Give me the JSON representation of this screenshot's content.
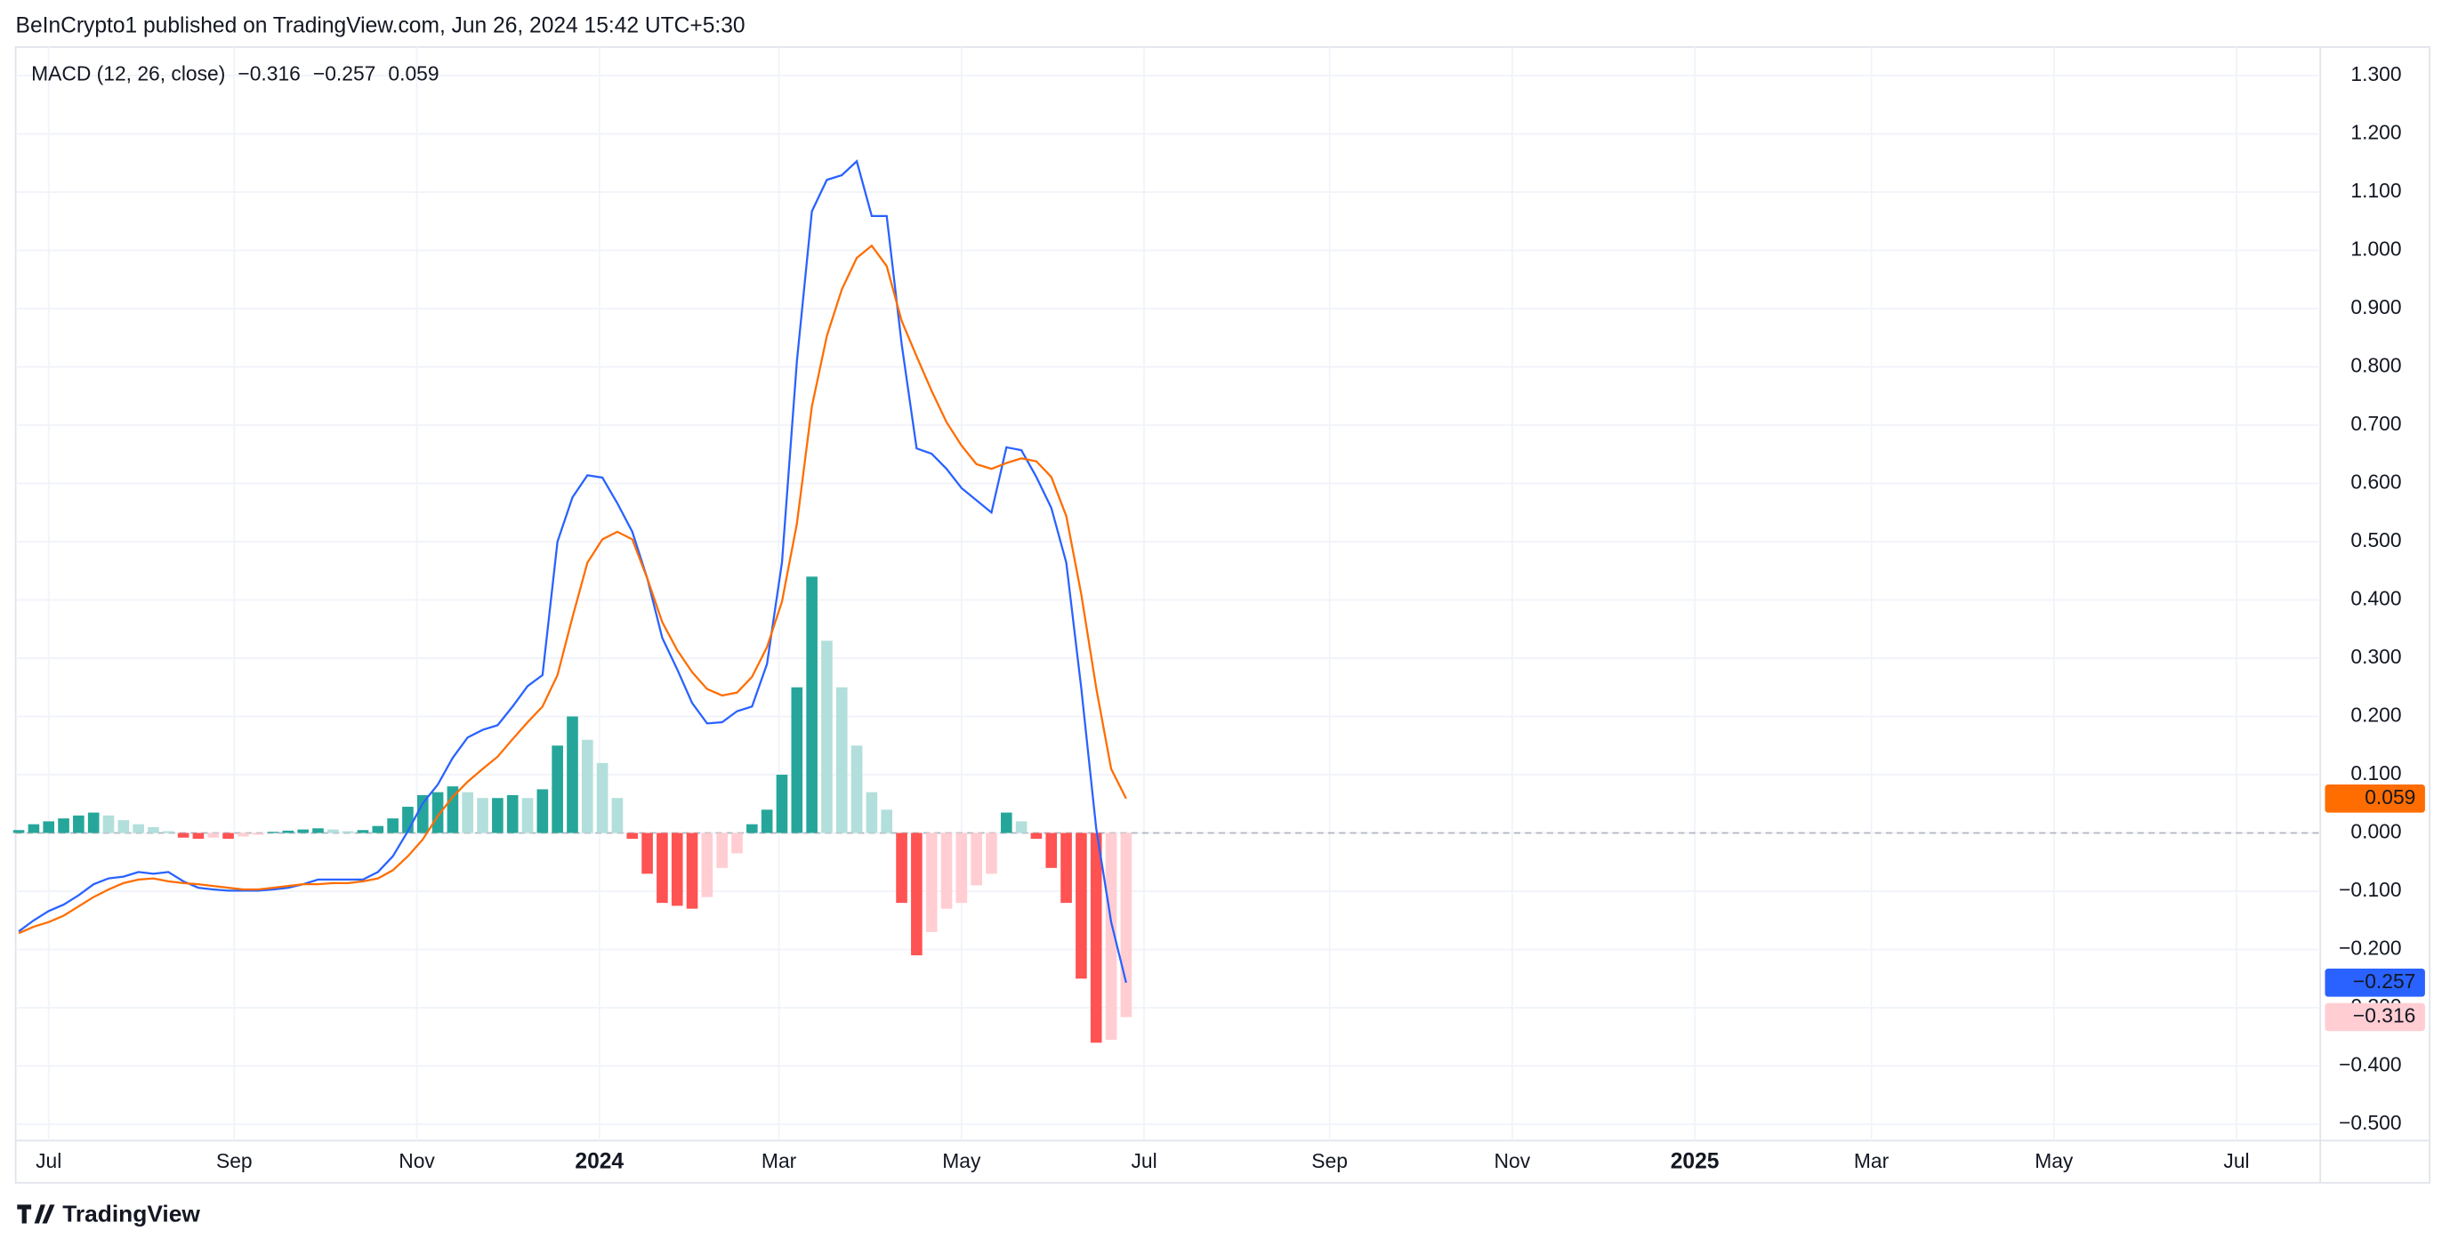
{
  "chart_data": {
    "type": "macd",
    "title": "BeInCrypto1 published on TradingView.com, Jun 26, 2024 15:42 UTC+5:30",
    "indicator": "MACD (12, 26, close)",
    "brand": "TradingView",
    "x": [
      -10,
      -5,
      0,
      5,
      10,
      15,
      20,
      25,
      30,
      35,
      40,
      45,
      50,
      55,
      60,
      65,
      70,
      75,
      80,
      85,
      90,
      95,
      100,
      105,
      110,
      115,
      120,
      125,
      130,
      135,
      140,
      145,
      150,
      155,
      160,
      165,
      170,
      175,
      180,
      185,
      190,
      195,
      200,
      205,
      210,
      215,
      220,
      225,
      230,
      235,
      240,
      245,
      250,
      255,
      260,
      265,
      270,
      275,
      280,
      285,
      290,
      295,
      300,
      305,
      310,
      315,
      320,
      325,
      330,
      335,
      340,
      345,
      350,
      355,
      360
    ],
    "xlim": [
      -10,
      759
    ],
    "xticks": [
      {
        "value": 0,
        "label": "Jul"
      },
      {
        "value": 62,
        "label": "Sep"
      },
      {
        "value": 123,
        "label": "Nov"
      },
      {
        "value": 184,
        "label": "2024"
      },
      {
        "value": 244,
        "label": "Mar"
      },
      {
        "value": 305,
        "label": "May"
      },
      {
        "value": 366,
        "label": "Jul"
      },
      {
        "value": 428,
        "label": "Sep"
      },
      {
        "value": 489,
        "label": "Nov"
      },
      {
        "value": 550,
        "label": "2025"
      },
      {
        "value": 609,
        "label": "Mar"
      },
      {
        "value": 670,
        "label": "May"
      },
      {
        "value": 731,
        "label": "Jul"
      }
    ],
    "ylim": [
      -0.528,
      1.349
    ],
    "yticks": [
      {
        "value": 1.3,
        "label": "1.300"
      },
      {
        "value": 1.2,
        "label": "1.200"
      },
      {
        "value": 1.1,
        "label": "1.100"
      },
      {
        "value": 1.0,
        "label": "1.000"
      },
      {
        "value": 0.9,
        "label": "0.900"
      },
      {
        "value": 0.8,
        "label": "0.800"
      },
      {
        "value": 0.7,
        "label": "0.700"
      },
      {
        "value": 0.6,
        "label": "0.600"
      },
      {
        "value": 0.5,
        "label": "0.500"
      },
      {
        "value": 0.4,
        "label": "0.400"
      },
      {
        "value": 0.3,
        "label": "0.300"
      },
      {
        "value": 0.2,
        "label": "0.200"
      },
      {
        "value": 0.1,
        "label": "0.100"
      },
      {
        "value": 0,
        "label": "0.000"
      },
      {
        "value": -0.1,
        "label": "−0.100"
      },
      {
        "value": -0.2,
        "label": "−0.200"
      },
      {
        "value": -0.3,
        "label": "−0.300"
      },
      {
        "value": -0.4,
        "label": "−0.400"
      },
      {
        "value": -0.5,
        "label": "−0.500"
      }
    ],
    "grid": true,
    "zero_line": true,
    "series": [
      {
        "type": "bar",
        "color": "#ffcdd2",
        "colors": {
          "grow_above": "#26a69a",
          "fall_above": "#b2dfdb",
          "grow_below": "#ffcdd2",
          "fall_below": "#ff5252"
        },
        "last_label": "−0.316",
        "values": [
          0.005,
          0.015,
          0.02,
          0.025,
          0.03,
          0.035,
          0.03,
          0.022,
          0.015,
          0.01,
          0.003,
          -0.008,
          -0.01,
          -0.008,
          -0.01,
          -0.006,
          -0.003,
          0.002,
          0.004,
          0.006,
          0.008,
          0.006,
          0.003,
          0.005,
          0.012,
          0.025,
          0.045,
          0.065,
          0.07,
          0.08,
          0.07,
          0.06,
          0.06,
          0.065,
          0.06,
          0.075,
          0.15,
          0.2,
          0.16,
          0.12,
          0.06,
          -0.01,
          -0.07,
          -0.12,
          -0.125,
          -0.13,
          -0.11,
          -0.06,
          -0.035,
          0.015,
          0.04,
          0.1,
          0.25,
          0.44,
          0.33,
          0.25,
          0.15,
          0.07,
          0.04,
          -0.12,
          -0.21,
          -0.17,
          -0.13,
          -0.12,
          -0.09,
          -0.07,
          0.035,
          0.02,
          -0.01,
          -0.06,
          -0.12,
          -0.25,
          -0.36,
          -0.355,
          -0.316
        ]
      },
      {
        "type": "line",
        "color": "#2962ff",
        "last_label": "−0.257",
        "values": [
          -0.169,
          -0.15,
          -0.134,
          -0.123,
          -0.107,
          -0.088,
          -0.078,
          -0.075,
          -0.067,
          -0.07,
          -0.067,
          -0.083,
          -0.094,
          -0.097,
          -0.099,
          -0.099,
          -0.099,
          -0.097,
          -0.094,
          -0.088,
          -0.08,
          -0.08,
          -0.08,
          -0.08,
          -0.067,
          -0.04,
          0.003,
          0.051,
          0.083,
          0.129,
          0.164,
          0.177,
          0.185,
          0.217,
          0.252,
          0.271,
          0.5,
          0.576,
          0.614,
          0.61,
          0.566,
          0.517,
          0.437,
          0.335,
          0.281,
          0.223,
          0.188,
          0.19,
          0.209,
          0.217,
          0.29,
          0.464,
          0.81,
          1.067,
          1.121,
          1.129,
          1.153,
          1.059,
          1.059,
          0.839,
          0.66,
          0.651,
          0.625,
          0.592,
          0.571,
          0.55,
          0.662,
          0.657,
          0.611,
          0.558,
          0.464,
          0.249,
          0.008,
          -0.153,
          -0.257
        ]
      },
      {
        "type": "line",
        "color": "#ff6d00",
        "last_label": "0.059",
        "values": [
          -0.172,
          -0.161,
          -0.153,
          -0.142,
          -0.126,
          -0.11,
          -0.097,
          -0.086,
          -0.08,
          -0.078,
          -0.083,
          -0.086,
          -0.088,
          -0.091,
          -0.094,
          -0.097,
          -0.097,
          -0.094,
          -0.091,
          -0.088,
          -0.088,
          -0.086,
          -0.086,
          -0.083,
          -0.078,
          -0.064,
          -0.04,
          -0.011,
          0.029,
          0.062,
          0.088,
          0.11,
          0.131,
          0.161,
          0.19,
          0.217,
          0.271,
          0.37,
          0.464,
          0.504,
          0.517,
          0.504,
          0.437,
          0.362,
          0.314,
          0.276,
          0.247,
          0.236,
          0.241,
          0.268,
          0.319,
          0.397,
          0.531,
          0.732,
          0.853,
          0.933,
          0.987,
          1.008,
          0.973,
          0.879,
          0.818,
          0.759,
          0.705,
          0.665,
          0.633,
          0.625,
          0.635,
          0.643,
          0.638,
          0.611,
          0.544,
          0.41,
          0.249,
          0.11,
          0.059
        ]
      }
    ]
  }
}
